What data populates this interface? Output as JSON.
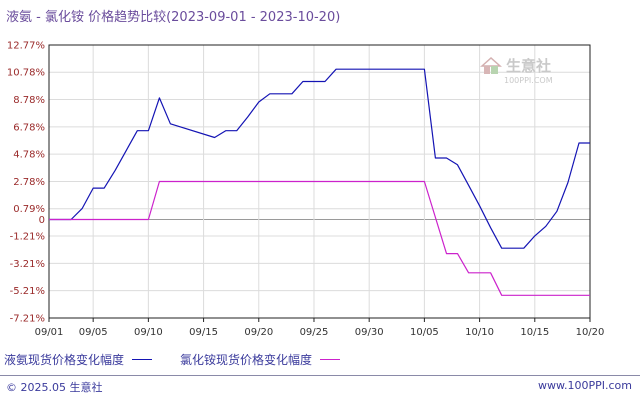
{
  "header": {
    "title": "液氨 - 氯化铵 价格趋势比较(2023-09-01 - 2023-10-20)"
  },
  "colors": {
    "series1": "#1414b4",
    "series2": "#cc22cc",
    "grid": "#dcdcdc",
    "zero_line": "#9a9a9a"
  },
  "chart_data": {
    "type": "line",
    "title": "液氨 - 氯化铵 价格趋势比较(2023-09-01 - 2023-10-20)",
    "xlabel": "",
    "ylabel": "",
    "xlim": [
      "2023-09-01",
      "2023-10-20"
    ],
    "ylim": [
      -7.21,
      12.77
    ],
    "x_tick_labels": [
      "09/01",
      "09/05",
      "09/10",
      "09/15",
      "09/20",
      "09/25",
      "09/30",
      "10/05",
      "10/10",
      "10/15",
      "10/20"
    ],
    "y_tick_labels": [
      "12.77%",
      "10.78%",
      "8.78%",
      "6.78%",
      "4.78%",
      "2.78%",
      "0.79%",
      "0",
      "-1.21%",
      "-3.21%",
      "-5.21%",
      "-7.21%"
    ],
    "y_tick_values": [
      12.77,
      10.78,
      8.78,
      6.78,
      4.78,
      2.78,
      0.79,
      0,
      -1.21,
      -3.21,
      -5.21,
      -7.21
    ],
    "grid": true,
    "legend_position": "bottom",
    "series": [
      {
        "name": "液氨现货价格变化幅度",
        "x": [
          "2023-09-01",
          "2023-09-03",
          "2023-09-04",
          "2023-09-05",
          "2023-09-06",
          "2023-09-07",
          "2023-09-09",
          "2023-09-10",
          "2023-09-11",
          "2023-09-12",
          "2023-09-16",
          "2023-09-17",
          "2023-09-18",
          "2023-09-19",
          "2023-09-20",
          "2023-09-21",
          "2023-09-23",
          "2023-09-24",
          "2023-09-26",
          "2023-09-27",
          "2023-10-05",
          "2023-10-06",
          "2023-10-07",
          "2023-10-08",
          "2023-10-09",
          "2023-10-10",
          "2023-10-11",
          "2023-10-12",
          "2023-10-13",
          "2023-10-14",
          "2023-10-15",
          "2023-10-16",
          "2023-10-17",
          "2023-10-18",
          "2023-10-19",
          "2023-10-20"
        ],
        "values": [
          0,
          0,
          0.8,
          2.3,
          2.3,
          3.6,
          6.5,
          6.5,
          8.9,
          7.0,
          6.0,
          6.5,
          6.5,
          7.5,
          8.6,
          9.2,
          9.2,
          10.1,
          10.1,
          11.0,
          11.0,
          4.5,
          4.5,
          4.0,
          2.5,
          1.0,
          -0.6,
          -2.1,
          -2.1,
          -2.1,
          -1.2,
          -0.5,
          0.6,
          2.7,
          5.6,
          5.6
        ]
      },
      {
        "name": "氯化铵现货价格变化幅度",
        "x": [
          "2023-09-01",
          "2023-09-10",
          "2023-09-11",
          "2023-10-05",
          "2023-10-07",
          "2023-10-08",
          "2023-10-09",
          "2023-10-11",
          "2023-10-12",
          "2023-10-20"
        ],
        "values": [
          0,
          0,
          2.78,
          2.78,
          -2.5,
          -2.5,
          -3.9,
          -3.9,
          -5.55,
          -5.55
        ]
      }
    ]
  },
  "watermark": {
    "text": "生意社",
    "url": "100PPI.COM"
  },
  "footer": {
    "left": "© 2025.05 生意社",
    "right": "www.100PPI.com"
  }
}
